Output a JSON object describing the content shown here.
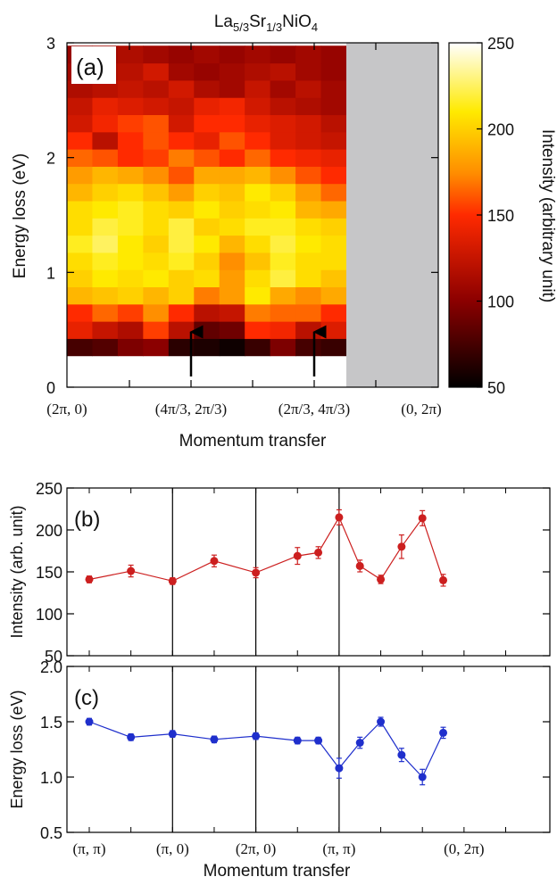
{
  "chart_data": [
    {
      "type": "heatmap",
      "panel_label": "(a)",
      "title": "La5/3Sr1/3NiO4",
      "title_parts": [
        "La",
        "5/3",
        "Sr",
        "1/3",
        "NiO",
        "4"
      ],
      "xlabel": "Momentum transfer",
      "ylabel": "Energy loss (eV)",
      "ylim": [
        0,
        3
      ],
      "yticks": [
        "0",
        "1",
        "2",
        "3"
      ],
      "xtick_labels": [
        "(2π, 0)",
        "(4π/3, 2π/3)",
        "(2π/3, 4π/3)",
        "(0, 2π)"
      ],
      "colorbar": {
        "label": "Intensity (arbitrary unit)",
        "range": [
          50,
          250
        ],
        "ticks": [
          "50",
          "100",
          "150",
          "200",
          "250"
        ]
      },
      "arrows_at": [
        "(4π/3, 2π/3)",
        "(2π/3, 4π/3)"
      ],
      "energy_rows": [
        0.35,
        0.5,
        0.65,
        0.8,
        0.95,
        1.1,
        1.25,
        1.4,
        1.55,
        1.7,
        1.85,
        2.0,
        2.15,
        2.3,
        2.45,
        2.6,
        2.75,
        2.9
      ],
      "q_points": 11,
      "intensity_grid": [
        [
          75,
          80,
          95,
          100,
          65,
          60,
          55,
          70,
          95,
          75,
          70
        ],
        [
          140,
          125,
          115,
          155,
          120,
          85,
          90,
          150,
          145,
          120,
          135
        ],
        [
          150,
          165,
          155,
          175,
          150,
          120,
          125,
          170,
          165,
          165,
          150
        ],
        [
          190,
          195,
          200,
          190,
          200,
          170,
          180,
          210,
          185,
          175,
          185
        ],
        [
          200,
          210,
          205,
          210,
          200,
          205,
          180,
          205,
          220,
          205,
          195
        ],
        [
          205,
          215,
          210,
          205,
          215,
          200,
          175,
          195,
          215,
          205,
          205
        ],
        [
          215,
          225,
          210,
          200,
          220,
          210,
          190,
          205,
          220,
          210,
          205
        ],
        [
          205,
          220,
          215,
          205,
          220,
          200,
          205,
          215,
          215,
          205,
          200
        ],
        [
          205,
          210,
          215,
          205,
          200,
          210,
          200,
          205,
          210,
          190,
          185
        ],
        [
          190,
          200,
          205,
          195,
          180,
          200,
          195,
          210,
          200,
          180,
          165
        ],
        [
          180,
          190,
          185,
          175,
          160,
          185,
          185,
          190,
          175,
          160,
          150
        ],
        [
          165,
          160,
          150,
          155,
          170,
          160,
          150,
          165,
          150,
          145,
          140
        ],
        [
          150,
          120,
          150,
          160,
          150,
          140,
          160,
          150,
          135,
          130,
          125
        ],
        [
          130,
          145,
          155,
          160,
          130,
          150,
          150,
          140,
          135,
          130,
          120
        ],
        [
          125,
          140,
          135,
          130,
          125,
          140,
          145,
          130,
          120,
          115,
          110
        ],
        [
          115,
          120,
          125,
          120,
          130,
          115,
          110,
          125,
          110,
          120,
          110
        ],
        [
          110,
          115,
          120,
          130,
          110,
          105,
          110,
          115,
          120,
          110,
          105
        ],
        [
          105,
          110,
          115,
          110,
          105,
          110,
          105,
          110,
          105,
          110,
          105
        ]
      ],
      "no_data_region": "(2π/3, 4π/3) to (0, 2π)"
    },
    {
      "type": "line",
      "panel_label": "(b)",
      "xlabel": "",
      "ylabel": "Intensity (arb. unit)",
      "ylim": [
        50,
        250
      ],
      "yticks": [
        "50",
        "100",
        "150",
        "200",
        "250"
      ],
      "color": "#cc1f1f",
      "x": [
        0,
        0.5,
        1,
        1.5,
        2,
        2.5,
        2.75,
        3,
        3.25,
        3.5,
        3.75,
        4,
        4.25
      ],
      "values": [
        141,
        151,
        139,
        163,
        149,
        169,
        173,
        215,
        157,
        141,
        180,
        214,
        140
      ],
      "errors": [
        4,
        7,
        4,
        7,
        6,
        10,
        7,
        9,
        7,
        5,
        14,
        9,
        7
      ]
    },
    {
      "type": "line",
      "panel_label": "(c)",
      "xlabel": "Momentum transfer",
      "ylabel": "Energy loss (eV)",
      "ylim": [
        0.5,
        2.0
      ],
      "yticks": [
        "0.5",
        "1.0",
        "1.5",
        "2.0"
      ],
      "xtick_labels": [
        "(π, π)",
        "(π, 0)",
        "(2π, 0)",
        "(π, π)",
        "(0, 2π)"
      ],
      "xtick_positions": [
        0,
        1,
        2,
        3,
        4.5
      ],
      "color": "#1f2fcc",
      "x": [
        0,
        0.5,
        1,
        1.5,
        2,
        2.5,
        2.75,
        3,
        3.25,
        3.5,
        3.75,
        4,
        4.25
      ],
      "values": [
        1.5,
        1.36,
        1.39,
        1.34,
        1.37,
        1.33,
        1.33,
        1.08,
        1.31,
        1.5,
        1.2,
        1.0,
        1.4
      ],
      "errors": [
        0.03,
        0.03,
        0.03,
        0.03,
        0.03,
        0.03,
        0.03,
        0.09,
        0.05,
        0.04,
        0.06,
        0.07,
        0.05
      ]
    }
  ]
}
